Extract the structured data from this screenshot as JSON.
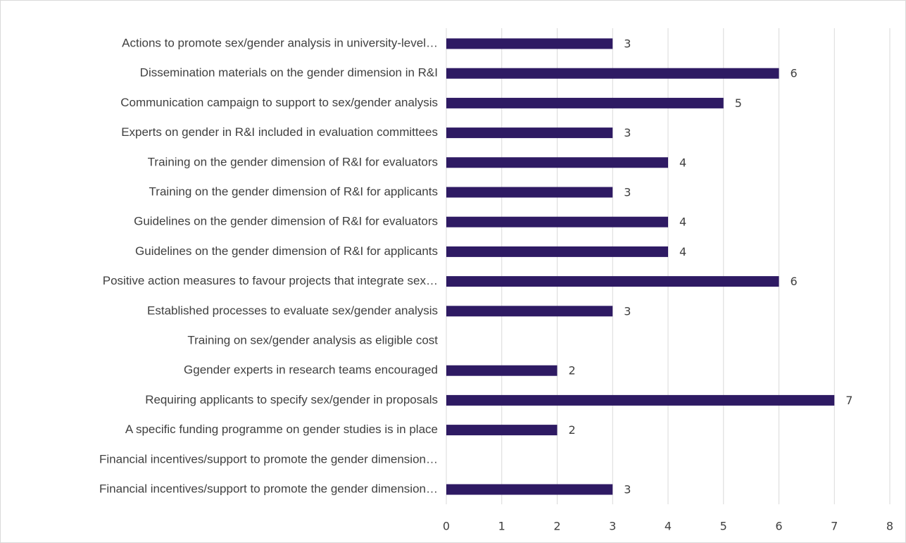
{
  "chart_data": {
    "type": "barh",
    "categories": [
      "Actions to promote sex/gender analysis in university-level…",
      "Dissemination materials on the gender dimension in R&I",
      "Communication campaign to support to sex/gender analysis",
      "Experts on gender in R&I included in evaluation committees",
      "Training on the gender dimension of R&I for evaluators",
      "Training on the gender dimension of R&I for applicants",
      "Guidelines on the gender dimension of R&I for evaluators",
      "Guidelines on the gender dimension of R&I for applicants",
      "Positive action measures to favour projects that integrate sex…",
      "Established processes to evaluate sex/gender analysis",
      "Training on sex/gender analysis as eligible cost",
      "Ggender experts in research teams encouraged",
      "Requiring applicants to specify sex/gender in proposals",
      "A specific funding programme on gender studies is in place",
      "Financial incentives/support to promote the gender dimension…",
      "Financial incentives/support to promote the gender dimension…"
    ],
    "values": [
      3,
      6,
      5,
      3,
      4,
      3,
      4,
      4,
      6,
      3,
      null,
      2,
      7,
      2,
      null,
      3
    ],
    "color": "#2e1a63",
    "xlim": [
      0,
      8
    ],
    "xticks": [
      0,
      1,
      2,
      3,
      4,
      5,
      6,
      7,
      8
    ],
    "grid": true
  }
}
